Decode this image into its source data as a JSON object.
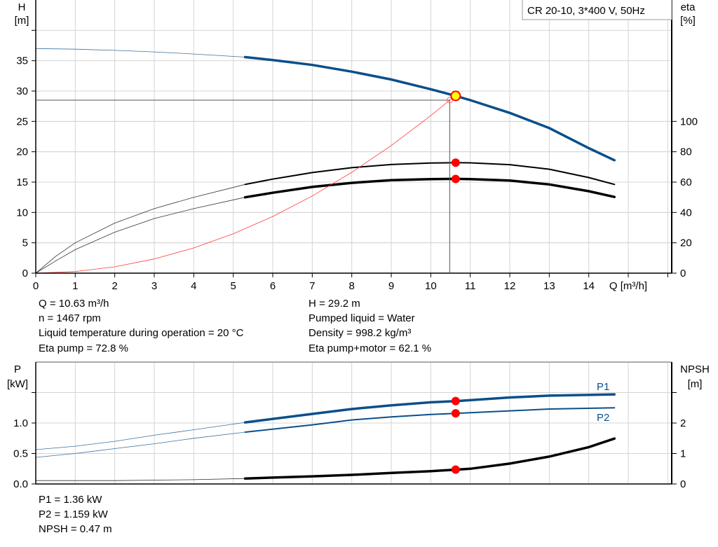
{
  "chart_data": [
    {
      "type": "line",
      "title": "CR 20-10, 3*400 V, 50Hz",
      "xlabel": "Q [m³/h]",
      "ylabel_left": [
        "H",
        "[m]"
      ],
      "ylabel_right": [
        "eta",
        "[%]"
      ],
      "xlim": [
        0,
        16.1
      ],
      "ylim_left": [
        0,
        45
      ],
      "ylim_right": [
        0,
        180
      ],
      "x_ticks": [
        "0",
        "1",
        "2",
        "3",
        "4",
        "5",
        "6",
        "7",
        "8",
        "9",
        "10",
        "11",
        "12",
        "13",
        "14"
      ],
      "y_left_ticks": [
        "0",
        "5",
        "10",
        "15",
        "20",
        "25",
        "30",
        "35"
      ],
      "y_right_ticks": [
        "0",
        "20",
        "40",
        "60",
        "80",
        "100"
      ],
      "grid": true,
      "operating_range_start": 5.3,
      "series": [
        {
          "key": "H",
          "axis": "left",
          "color": "#0b4f8a",
          "points": [
            [
              0,
              37
            ],
            [
              1,
              36.9
            ],
            [
              2,
              36.7
            ],
            [
              3,
              36.45
            ],
            [
              4,
              36.1
            ],
            [
              5.3,
              35.6
            ],
            [
              6,
              35.1
            ],
            [
              7,
              34.3
            ],
            [
              8,
              33.2
            ],
            [
              9,
              31.9
            ],
            [
              10,
              30.3
            ],
            [
              10.63,
              29.2
            ],
            [
              11,
              28.5
            ],
            [
              12,
              26.4
            ],
            [
              13,
              23.9
            ],
            [
              14,
              20.6
            ],
            [
              14.65,
              18.6
            ]
          ]
        },
        {
          "key": "eta_pump",
          "axis": "right",
          "color": "#000000",
          "points": [
            [
              0,
              0
            ],
            [
              0.5,
              11
            ],
            [
              1,
              20
            ],
            [
              2,
              33
            ],
            [
              3,
              42.5
            ],
            [
              4,
              50
            ],
            [
              5.3,
              58.5
            ],
            [
              6,
              62
            ],
            [
              7,
              66.3
            ],
            [
              8,
              69.5
            ],
            [
              9,
              71.6
            ],
            [
              10,
              72.6
            ],
            [
              10.63,
              72.8
            ],
            [
              11,
              72.7
            ],
            [
              12,
              71.5
            ],
            [
              13,
              68.5
            ],
            [
              14,
              63
            ],
            [
              14.65,
              58.5
            ]
          ]
        },
        {
          "key": "eta_pump_motor",
          "axis": "right",
          "color": "#000000",
          "thick": true,
          "points": [
            [
              0,
              0
            ],
            [
              0.5,
              8
            ],
            [
              1,
              15.5
            ],
            [
              2,
              27
            ],
            [
              3,
              36
            ],
            [
              4,
              42.5
            ],
            [
              5.3,
              50
            ],
            [
              6,
              53
            ],
            [
              7,
              56.8
            ],
            [
              8,
              59.5
            ],
            [
              9,
              61.3
            ],
            [
              10,
              62
            ],
            [
              10.63,
              62.1
            ],
            [
              11,
              62
            ],
            [
              12,
              61
            ],
            [
              13,
              58.5
            ],
            [
              14,
              54
            ],
            [
              14.65,
              50.2
            ]
          ]
        },
        {
          "key": "system_curve",
          "axis": "left",
          "color": "#ff3b3b",
          "points": [
            [
              0,
              0
            ],
            [
              1,
              0.26
            ],
            [
              2,
              1.04
            ],
            [
              3,
              2.34
            ],
            [
              4,
              4.15
            ],
            [
              5,
              6.49
            ],
            [
              6,
              9.34
            ],
            [
              7,
              12.72
            ],
            [
              8,
              16.61
            ],
            [
              9,
              21.02
            ],
            [
              10,
              25.95
            ],
            [
              10.48,
              28.5
            ],
            [
              10.63,
              29.2
            ]
          ]
        }
      ],
      "duty_point": {
        "Q": 10.63,
        "H": 29.2,
        "eta_pump": 72.8,
        "eta_pump_motor": 62.1
      },
      "requested_point": {
        "Q": 10.48,
        "H": 28.5
      }
    },
    {
      "type": "line",
      "ylabel_left": [
        "P",
        "[kW]"
      ],
      "ylabel_right": [
        "NPSH",
        "[m]"
      ],
      "xlim": [
        0,
        16.1
      ],
      "ylim_left": [
        0,
        2
      ],
      "ylim_right": [
        0,
        4
      ],
      "y_left_ticks": [
        "0.0",
        "0.5",
        "1.0"
      ],
      "y_right_ticks": [
        "0",
        "1",
        "2"
      ],
      "grid": true,
      "series": [
        {
          "key": "P1",
          "name": "P1",
          "axis": "left",
          "color": "#0b4f8a",
          "thick": true,
          "points": [
            [
              0,
              0.563
            ],
            [
              1,
              0.62
            ],
            [
              2,
              0.7
            ],
            [
              3,
              0.8
            ],
            [
              4,
              0.89
            ],
            [
              5.3,
              1.01
            ],
            [
              7,
              1.15
            ],
            [
              8,
              1.23
            ],
            [
              9,
              1.29
            ],
            [
              10,
              1.34
            ],
            [
              10.63,
              1.36
            ],
            [
              12,
              1.42
            ],
            [
              13,
              1.45
            ],
            [
              14.65,
              1.47
            ]
          ]
        },
        {
          "key": "P2",
          "name": "P2",
          "axis": "left",
          "color": "#0b4f8a",
          "points": [
            [
              0,
              0.437
            ],
            [
              1,
              0.5
            ],
            [
              2,
              0.58
            ],
            [
              3,
              0.66
            ],
            [
              4,
              0.75
            ],
            [
              5.3,
              0.85
            ],
            [
              7,
              0.97
            ],
            [
              8,
              1.05
            ],
            [
              9,
              1.1
            ],
            [
              10,
              1.14
            ],
            [
              10.63,
              1.159
            ],
            [
              12,
              1.2
            ],
            [
              13,
              1.23
            ],
            [
              14.65,
              1.25
            ]
          ]
        },
        {
          "key": "NPSH",
          "axis": "right",
          "color": "#000000",
          "thick": true,
          "points": [
            [
              0,
              0.11
            ],
            [
              2,
              0.11
            ],
            [
              4,
              0.14
            ],
            [
              5.3,
              0.18
            ],
            [
              7,
              0.25
            ],
            [
              8,
              0.3
            ],
            [
              9,
              0.36
            ],
            [
              10,
              0.42
            ],
            [
              10.63,
              0.47
            ],
            [
              11,
              0.5
            ],
            [
              12,
              0.67
            ],
            [
              13,
              0.9
            ],
            [
              14,
              1.21
            ],
            [
              14.65,
              1.49
            ]
          ]
        }
      ],
      "duty_point": {
        "Q": 10.63,
        "P1": 1.36,
        "P2": 1.159,
        "NPSH": 0.47
      }
    }
  ],
  "info_top_left": [
    "Q = 10.63 m³/h",
    "n = 1467 rpm",
    "Liquid temperature during operation = 20 °C",
    "Eta pump = 72.8 %"
  ],
  "info_top_right": [
    "H = 29.2 m",
    "Pumped liquid = Water",
    "Density = 998.2 kg/m³",
    "Eta pump+motor = 62.1 %"
  ],
  "info_bottom": [
    "P1 = 1.36 kW",
    "P2 = 1.159 kW",
    "NPSH = 0.47 m"
  ],
  "colors": {
    "pump_curve": "#0b4f8a",
    "duty_marker": "#ff0000",
    "duty_point_fill": "#ffff00",
    "grid": "#d4d4d4"
  }
}
